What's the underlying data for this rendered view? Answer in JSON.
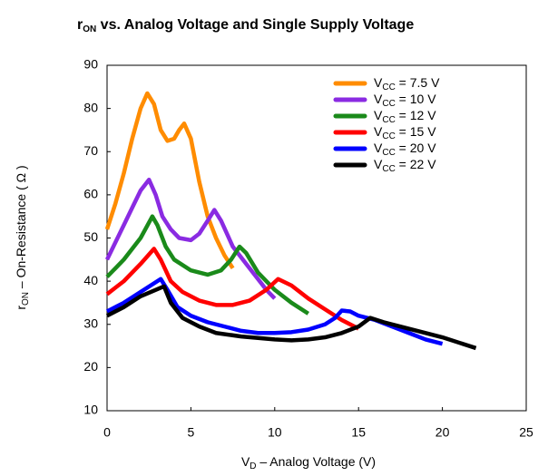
{
  "chart_data": {
    "type": "line",
    "title": [
      "r",
      "ON",
      " vs. Analog Voltage and Single Supply Voltage"
    ],
    "x_label": [
      "V",
      "D",
      " – Analog Voltage (V)"
    ],
    "y_label": [
      "r",
      "ON",
      " – On-Resistance ( Ω )"
    ],
    "xlim": [
      0,
      25
    ],
    "xticks": [
      0,
      5,
      10,
      15,
      20,
      25
    ],
    "ylim": [
      10,
      90
    ],
    "yticks": [
      10,
      20,
      30,
      40,
      50,
      60,
      70,
      80,
      90
    ],
    "legend": "upper right",
    "series": [
      {
        "name": [
          "V",
          "CC",
          " = 7.5 V"
        ],
        "color": "#ff8c00",
        "x": [
          0,
          0.5,
          1,
          1.5,
          2,
          2.4,
          2.8,
          3.2,
          3.6,
          4,
          4.3,
          4.6,
          5,
          5.5,
          6,
          6.5,
          7,
          7.5
        ],
        "values": [
          52,
          58,
          65,
          73,
          80,
          83.5,
          81,
          75,
          72.5,
          73,
          75,
          76.5,
          73,
          63,
          55,
          50,
          46,
          43
        ]
      },
      {
        "name": [
          "V",
          "CC",
          " = 10 V"
        ],
        "color": "#8a2be2",
        "x": [
          0,
          0.5,
          1,
          1.5,
          2,
          2.5,
          2.9,
          3.3,
          3.8,
          4.3,
          5,
          5.5,
          6,
          6.4,
          6.8,
          7.5,
          8.5,
          9.5,
          10
        ],
        "values": [
          45,
          49,
          53,
          57,
          61,
          63.5,
          60,
          55,
          52,
          50,
          49.5,
          51,
          54,
          56.5,
          54,
          48,
          43,
          38,
          36
        ]
      },
      {
        "name": [
          "V",
          "CC",
          " = 12 V"
        ],
        "color": "#1a8a1a",
        "x": [
          0,
          1,
          2,
          2.7,
          3,
          3.5,
          4,
          5,
          6,
          6.8,
          7.4,
          7.9,
          8.3,
          9,
          10,
          11,
          12
        ],
        "values": [
          41,
          45,
          50,
          55,
          53,
          48,
          45,
          42.5,
          41.5,
          42.5,
          45,
          48,
          46.5,
          42,
          38,
          35,
          32.5
        ]
      },
      {
        "name": [
          "V",
          "CC",
          " = 15 V"
        ],
        "color": "#ff0000",
        "x": [
          0,
          1,
          2,
          2.8,
          3.2,
          3.8,
          4.5,
          5.5,
          6.5,
          7.5,
          8.5,
          9.5,
          10.2,
          11,
          12,
          13,
          14,
          15
        ],
        "values": [
          37,
          40,
          44,
          47.5,
          45,
          40,
          37.5,
          35.5,
          34.5,
          34.5,
          35.5,
          38,
          40.5,
          39,
          36,
          33.5,
          31,
          29
        ]
      },
      {
        "name": [
          "V",
          "CC",
          " = 20 V"
        ],
        "color": "#0000ff",
        "x": [
          0,
          1,
          2,
          3.2,
          3.6,
          4.2,
          5,
          6,
          7,
          8,
          9,
          10,
          11,
          12,
          13,
          13.6,
          14,
          14.5,
          15,
          16,
          17,
          18,
          19,
          20
        ],
        "values": [
          33,
          35,
          37.5,
          40.5,
          38,
          34,
          32,
          30.5,
          29.5,
          28.5,
          28,
          28,
          28.2,
          28.8,
          30,
          31.5,
          33.2,
          33,
          32,
          31,
          29.5,
          28,
          26.5,
          25.5
        ]
      },
      {
        "name": [
          "V",
          "CC",
          " = 22 V"
        ],
        "color": "#000000",
        "x": [
          0,
          1,
          2,
          3.4,
          3.8,
          4.5,
          5.5,
          6.5,
          8,
          10,
          11,
          12,
          13,
          14,
          15,
          15.7,
          16.5,
          18,
          20,
          22
        ],
        "values": [
          32,
          34,
          36.5,
          38.8,
          35,
          31.5,
          29.5,
          28,
          27.2,
          26.5,
          26.3,
          26.5,
          27,
          28,
          29.5,
          31.5,
          30.5,
          29,
          27,
          24.5
        ]
      }
    ]
  }
}
